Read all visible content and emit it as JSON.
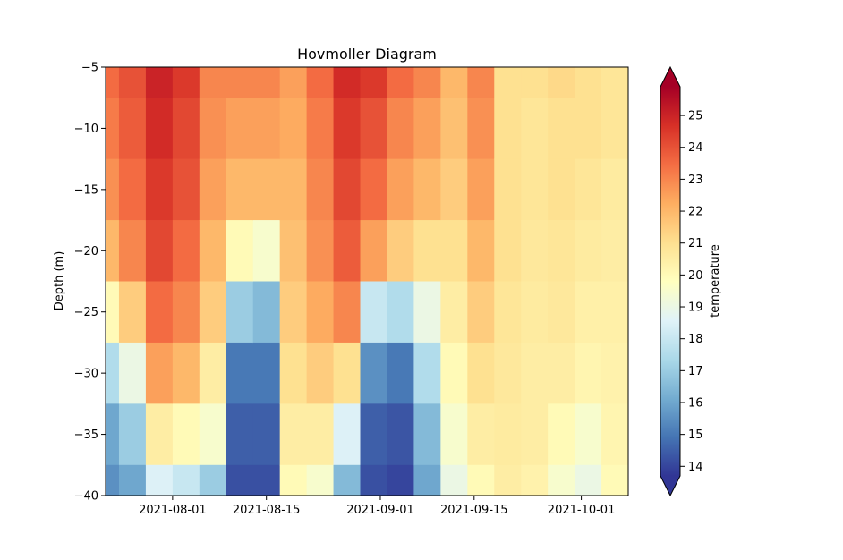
{
  "chart_data": {
    "type": "heatmap",
    "title": "Hovmoller Diagram",
    "xlabel": "",
    "ylabel": "Depth (m)",
    "x_ticks": [
      "2021-08-01",
      "2021-08-15",
      "2021-09-01",
      "2021-09-15",
      "2021-10-01"
    ],
    "x_range": [
      "2021-07-22",
      "2021-10-08"
    ],
    "y_ticks": [
      -5,
      -10,
      -15,
      -20,
      -25,
      -30,
      -35,
      -40
    ],
    "ylim": [
      -40,
      -5
    ],
    "colorbar": {
      "label": "temperature",
      "ticks": [
        14,
        15,
        16,
        17,
        18,
        19,
        20,
        21,
        22,
        23,
        24,
        25
      ],
      "vmin": 13.7,
      "vmax": 25.9,
      "colormap": "RdYlBu_r",
      "extend": "both"
    },
    "depth_levels": [
      -5,
      -10,
      -15,
      -20,
      -25,
      -30,
      -35,
      -40
    ],
    "time_samples": [
      "2021-07-22",
      "2021-07-26",
      "2021-07-30",
      "2021-08-03",
      "2021-08-07",
      "2021-08-11",
      "2021-08-15",
      "2021-08-19",
      "2021-08-23",
      "2021-08-27",
      "2021-08-31",
      "2021-09-04",
      "2021-09-08",
      "2021-09-12",
      "2021-09-16",
      "2021-09-20",
      "2021-09-24",
      "2021-09-28",
      "2021-10-02",
      "2021-10-06"
    ],
    "temperature_profiles": [
      [
        23.5,
        23.2,
        22.8,
        22.0,
        20.0,
        17.5,
        16.0,
        15.5
      ],
      [
        24.0,
        23.8,
        23.5,
        23.0,
        21.5,
        19.0,
        17.0,
        16.0
      ],
      [
        25.0,
        24.8,
        24.5,
        24.2,
        23.5,
        22.5,
        20.5,
        18.5
      ],
      [
        24.5,
        24.2,
        24.0,
        23.5,
        23.0,
        22.0,
        20.0,
        18.0
      ],
      [
        23.0,
        22.8,
        22.5,
        22.0,
        21.5,
        20.5,
        19.5,
        17.0
      ],
      [
        23.0,
        22.5,
        22.0,
        20.0,
        17.0,
        15.0,
        14.5,
        14.2
      ],
      [
        23.0,
        22.5,
        22.0,
        19.5,
        16.5,
        15.0,
        14.5,
        14.2
      ],
      [
        22.5,
        22.3,
        22.0,
        21.8,
        21.5,
        21.0,
        20.5,
        20.0
      ],
      [
        23.5,
        23.2,
        23.0,
        22.8,
        22.3,
        21.5,
        20.5,
        19.5
      ],
      [
        24.8,
        24.5,
        24.2,
        23.8,
        23.0,
        21.0,
        18.5,
        16.5
      ],
      [
        24.5,
        24.0,
        23.5,
        22.5,
        18.0,
        15.5,
        14.5,
        14.2
      ],
      [
        23.5,
        23.0,
        22.5,
        21.5,
        17.5,
        15.0,
        14.3,
        14.0
      ],
      [
        23.0,
        22.5,
        22.0,
        21.0,
        19.0,
        17.5,
        16.5,
        16.0
      ],
      [
        22.0,
        21.8,
        21.5,
        21.0,
        20.5,
        20.0,
        19.5,
        19.0
      ],
      [
        23.0,
        22.8,
        22.5,
        22.0,
        21.5,
        21.0,
        20.5,
        20.0
      ],
      [
        21.0,
        21.0,
        21.0,
        21.0,
        20.8,
        20.7,
        20.6,
        20.5
      ],
      [
        21.0,
        20.8,
        20.8,
        20.7,
        20.6,
        20.5,
        20.5,
        20.3
      ],
      [
        21.2,
        21.0,
        21.0,
        20.8,
        20.7,
        20.5,
        20.0,
        19.5
      ],
      [
        21.0,
        21.0,
        20.8,
        20.6,
        20.4,
        20.2,
        19.5,
        19.0
      ],
      [
        20.8,
        20.8,
        20.6,
        20.5,
        20.4,
        20.3,
        20.2,
        20.0
      ]
    ]
  }
}
